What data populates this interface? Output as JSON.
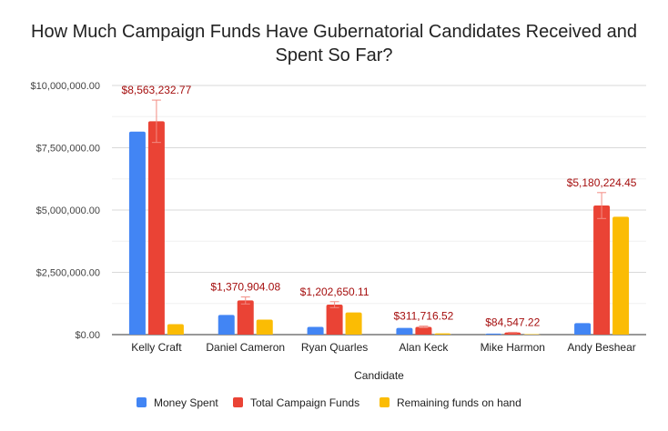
{
  "chart_data": {
    "type": "bar",
    "title_lines": [
      "How Much Campaign Funds Have Gubernatorial Candidates Received and",
      "Spent So Far?"
    ],
    "xlabel": "Candidate",
    "ylabel": "",
    "ylim": [
      0,
      10000000
    ],
    "yticks": [
      0,
      2500000,
      5000000,
      7500000,
      10000000
    ],
    "ytick_labels": [
      "$0.00",
      "$2,500,000.00",
      "$5,000,000.00",
      "$7,500,000.00",
      "$10,000,000.00"
    ],
    "grid": true,
    "legend_position": "bottom",
    "categories": [
      "Kelly Craft",
      "Daniel Cameron",
      "Ryan Quarles",
      "Alan Keck",
      "Mike Harmon",
      "Andy Beshear"
    ],
    "series": [
      {
        "name": "Money Spent",
        "color": "#4285f4",
        "values": [
          8150000,
          790000,
          310000,
          270000,
          40000,
          460000
        ]
      },
      {
        "name": "Total Campaign Funds",
        "color": "#ea4335",
        "values": [
          8563232.77,
          1370904.08,
          1202650.11,
          311716.52,
          84547.22,
          5180224.45
        ],
        "data_labels": [
          "$8,563,232.77",
          "$1,370,904.08",
          "$1,202,650.11",
          "$311,716.52",
          "$84,547.22",
          "$5,180,224.45"
        ],
        "error_bars": [
          850000,
          140000,
          120000,
          30000,
          8500,
          520000
        ]
      },
      {
        "name": "Remaining funds on hand",
        "color": "#fbbc04",
        "values": [
          420000,
          600000,
          890000,
          50000,
          20000,
          4730000
        ]
      }
    ]
  }
}
